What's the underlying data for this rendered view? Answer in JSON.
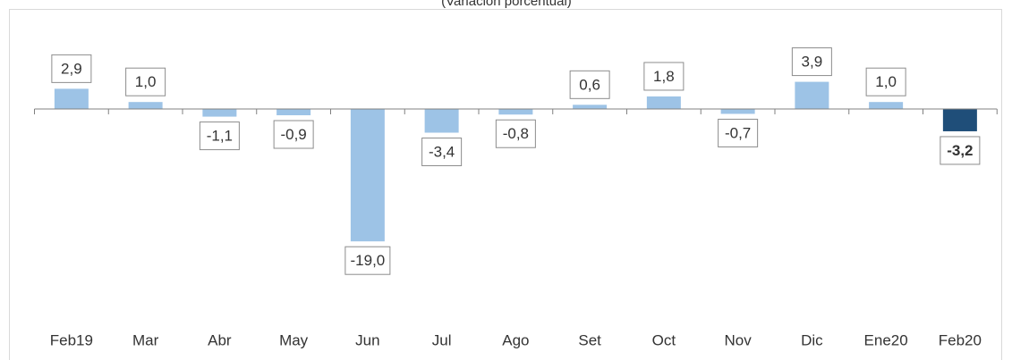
{
  "chart_data": {
    "type": "bar",
    "title": "(Variación porcentual)",
    "categories": [
      "Feb19",
      "Mar",
      "Abr",
      "May",
      "Jun",
      "Jul",
      "Ago",
      "Set",
      "Oct",
      "Nov",
      "Dic",
      "Ene20",
      "Feb20"
    ],
    "values": [
      2.9,
      1.0,
      -1.1,
      -0.9,
      -19.0,
      -3.4,
      -0.8,
      0.6,
      1.8,
      -0.7,
      3.9,
      1.0,
      -3.2
    ],
    "value_labels": [
      "2,9",
      "1,0",
      "-1,1",
      "-0,9",
      "-19,0",
      "-3,4",
      "-0,8",
      "0,6",
      "1,8",
      "-0,7",
      "3,9",
      "1,0",
      "-3,2"
    ],
    "colors": [
      "#9dc3e6",
      "#9dc3e6",
      "#9dc3e6",
      "#9dc3e6",
      "#9dc3e6",
      "#9dc3e6",
      "#9dc3e6",
      "#9dc3e6",
      "#9dc3e6",
      "#9dc3e6",
      "#9dc3e6",
      "#9dc3e6",
      "#1f4e79"
    ]
  }
}
